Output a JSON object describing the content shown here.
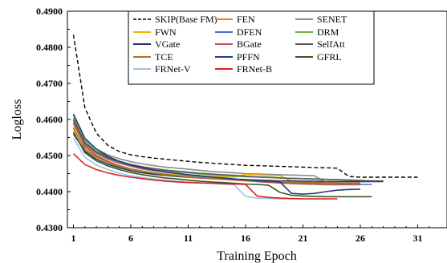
{
  "chart_data": {
    "type": "line",
    "ylabel": "Logloss",
    "xlabel": "Training Epoch",
    "xlim": [
      0,
      34
    ],
    "ylim": [
      0.43,
      0.49
    ],
    "x_ticks": [
      1,
      6,
      11,
      16,
      21,
      26,
      31
    ],
    "y_ticks": [
      0.43,
      0.44,
      0.45,
      0.46,
      0.47,
      0.48,
      0.49
    ],
    "y_tick_labels": [
      "0.4300",
      "0.4400",
      "0.4500",
      "0.4600",
      "0.4700",
      "0.4800",
      "0.4900"
    ],
    "grid": false,
    "legend_position": "top-center",
    "series": [
      {
        "name": "SKIP(Base FM)",
        "color": "#000000",
        "dash": true,
        "x": [
          1,
          2,
          3,
          4,
          5,
          6,
          7,
          8,
          9,
          10,
          11,
          12,
          13,
          14,
          15,
          16,
          17,
          18,
          19,
          20,
          21,
          22,
          23,
          24,
          25,
          26,
          27,
          28,
          29,
          30,
          31
        ],
        "values": [
          0.4835,
          0.4632,
          0.4562,
          0.4528,
          0.4511,
          0.4502,
          0.4497,
          0.4493,
          0.449,
          0.4487,
          0.4484,
          0.4481,
          0.4479,
          0.4477,
          0.4475,
          0.4473,
          0.4472,
          0.4471,
          0.447,
          0.4469,
          0.4468,
          0.4467,
          0.4466,
          0.4465,
          0.4442,
          0.444,
          0.444,
          0.444,
          0.444,
          0.444,
          0.444
        ]
      },
      {
        "name": "FEN",
        "color": "#ed7d31",
        "x": [
          1,
          2,
          3,
          4,
          5,
          6,
          7,
          8,
          9,
          10,
          11,
          12,
          13,
          14,
          15,
          16,
          17,
          18,
          19,
          20,
          21,
          22,
          23,
          24,
          25,
          26
        ],
        "values": [
          0.4588,
          0.4528,
          0.4505,
          0.4489,
          0.4478,
          0.447,
          0.4462,
          0.4458,
          0.4454,
          0.445,
          0.4447,
          0.4444,
          0.4441,
          0.4438,
          0.4435,
          0.4432,
          0.4429,
          0.4426,
          0.4424,
          0.4422,
          0.4421,
          0.442,
          0.4419,
          0.4419,
          0.4419,
          0.4419
        ]
      },
      {
        "name": "SENET",
        "color": "#8c8c8c",
        "x": [
          1,
          2,
          3,
          4,
          5,
          6,
          7,
          8,
          9,
          10,
          11,
          12,
          13,
          14,
          15,
          16,
          17,
          18,
          19,
          20,
          21,
          22,
          23,
          24,
          25,
          26
        ],
        "values": [
          0.4612,
          0.4545,
          0.4518,
          0.4502,
          0.4491,
          0.4483,
          0.4477,
          0.4472,
          0.4468,
          0.4465,
          0.4462,
          0.4459,
          0.4456,
          0.4454,
          0.4452,
          0.445,
          0.4449,
          0.4448,
          0.4447,
          0.4446,
          0.4445,
          0.4444,
          0.4425,
          0.4424,
          0.4423,
          0.4423
        ]
      },
      {
        "name": "FWN",
        "color": "#f2b300",
        "x": [
          1,
          2,
          3,
          4,
          5,
          6,
          7,
          8,
          9,
          10,
          11,
          12,
          13,
          14,
          15,
          16,
          17,
          18,
          19,
          20,
          21,
          22,
          23,
          24,
          25,
          26
        ],
        "values": [
          0.458,
          0.4516,
          0.4495,
          0.4481,
          0.447,
          0.4462,
          0.4456,
          0.4452,
          0.4449,
          0.4447,
          0.4445,
          0.4443,
          0.4442,
          0.4441,
          0.444,
          0.4448,
          0.4447,
          0.4445,
          0.4444,
          0.4429,
          0.4427,
          0.4425,
          0.4423,
          0.4422,
          0.4421,
          0.442
        ]
      },
      {
        "name": "DFEN",
        "color": "#4472c4",
        "x": [
          1,
          2,
          3,
          4,
          5,
          6,
          7,
          8,
          9,
          10,
          11,
          12,
          13,
          14,
          15,
          16,
          17,
          18,
          19,
          20,
          21,
          22,
          23,
          24,
          25,
          26,
          27
        ],
        "values": [
          0.4598,
          0.4532,
          0.4508,
          0.4492,
          0.4481,
          0.4472,
          0.4465,
          0.4459,
          0.4454,
          0.445,
          0.4446,
          0.4443,
          0.444,
          0.4437,
          0.4434,
          0.4431,
          0.4428,
          0.4426,
          0.4424,
          0.4423,
          0.4422,
          0.4421,
          0.442,
          0.442,
          0.442,
          0.442,
          0.442
        ]
      },
      {
        "name": "DRM",
        "color": "#70ad47",
        "x": [
          1,
          2,
          3,
          4,
          5,
          6,
          7,
          8,
          9,
          10,
          11,
          12,
          13,
          14,
          15,
          16,
          17,
          18,
          19,
          20,
          21,
          22,
          23,
          24,
          25,
          26
        ],
        "values": [
          0.4605,
          0.454,
          0.4512,
          0.4496,
          0.4484,
          0.4475,
          0.4468,
          0.4463,
          0.4459,
          0.4455,
          0.4452,
          0.4449,
          0.4447,
          0.4445,
          0.4443,
          0.4441,
          0.444,
          0.4439,
          0.4438,
          0.4437,
          0.4436,
          0.4435,
          0.4434,
          0.4433,
          0.4432,
          0.4431
        ]
      },
      {
        "name": "VGate",
        "color": "#203864",
        "x": [
          1,
          2,
          3,
          4,
          5,
          6,
          7,
          8,
          9,
          10,
          11,
          12,
          13,
          14,
          15,
          16,
          17,
          18,
          19,
          20,
          21,
          22,
          23,
          24,
          25,
          26,
          27,
          28
        ],
        "values": [
          0.456,
          0.4512,
          0.449,
          0.4476,
          0.4466,
          0.4458,
          0.4452,
          0.4448,
          0.4445,
          0.4442,
          0.444,
          0.4438,
          0.4436,
          0.4435,
          0.4434,
          0.4433,
          0.4432,
          0.4431,
          0.443,
          0.443,
          0.4429,
          0.4429,
          0.4428,
          0.4428,
          0.4428,
          0.4428,
          0.4428,
          0.4428
        ]
      },
      {
        "name": "BGate",
        "color": "#c0504d",
        "x": [
          1,
          2,
          3,
          4,
          5,
          6,
          7,
          8,
          9,
          10,
          11,
          12,
          13,
          14,
          15,
          16,
          17,
          18,
          19,
          20,
          21,
          22,
          23,
          24,
          25,
          26
        ],
        "values": [
          0.4592,
          0.4525,
          0.45,
          0.4484,
          0.4472,
          0.4463,
          0.4457,
          0.4452,
          0.4448,
          0.4444,
          0.4441,
          0.4438,
          0.4436,
          0.4434,
          0.4432,
          0.443,
          0.4428,
          0.4426,
          0.4425,
          0.4424,
          0.4423,
          0.4422,
          0.4421,
          0.442,
          0.442,
          0.442
        ]
      },
      {
        "name": "SelfAtt",
        "color": "#595959",
        "x": [
          1,
          2,
          3,
          4,
          5,
          6,
          7,
          8,
          9,
          10,
          11,
          12,
          13,
          14,
          15,
          16,
          17,
          18,
          19,
          20,
          21,
          22,
          23,
          24,
          25,
          26,
          27,
          28
        ],
        "values": [
          0.46,
          0.4535,
          0.451,
          0.4494,
          0.4483,
          0.4475,
          0.4469,
          0.4464,
          0.446,
          0.4457,
          0.4454,
          0.4451,
          0.4449,
          0.4447,
          0.4445,
          0.4443,
          0.4441,
          0.444,
          0.4438,
          0.4437,
          0.4436,
          0.4435,
          0.4434,
          0.4433,
          0.4432,
          0.4431,
          0.443,
          0.443
        ]
      },
      {
        "name": "TCE",
        "color": "#a6761d",
        "x": [
          1,
          2,
          3,
          4,
          5,
          6,
          7,
          8,
          9,
          10,
          11,
          12,
          13,
          14,
          15,
          16,
          17,
          18,
          19,
          20,
          21,
          22,
          23,
          24,
          25,
          26
        ],
        "values": [
          0.4575,
          0.4518,
          0.4496,
          0.4481,
          0.447,
          0.4462,
          0.4456,
          0.4451,
          0.4447,
          0.4444,
          0.4441,
          0.4439,
          0.4437,
          0.4435,
          0.4433,
          0.4431,
          0.443,
          0.4429,
          0.4428,
          0.4427,
          0.4426,
          0.4425,
          0.4425,
          0.4424,
          0.4424,
          0.4424
        ]
      },
      {
        "name": "PFFN",
        "color": "#1f3e7a",
        "x": [
          1,
          2,
          3,
          4,
          5,
          6,
          7,
          8,
          9,
          10,
          11,
          12,
          13,
          14,
          15,
          16,
          17,
          18,
          19,
          20,
          21,
          22,
          23,
          24,
          25,
          26
        ],
        "values": [
          0.4615,
          0.4548,
          0.4518,
          0.4498,
          0.4484,
          0.4474,
          0.4466,
          0.446,
          0.4455,
          0.4451,
          0.4447,
          0.4444,
          0.4441,
          0.4438,
          0.4435,
          0.4433,
          0.4431,
          0.4429,
          0.4427,
          0.4395,
          0.4393,
          0.4395,
          0.44,
          0.4404,
          0.4406,
          0.4407
        ]
      },
      {
        "name": "GFRL",
        "color": "#375623",
        "x": [
          1,
          2,
          3,
          4,
          5,
          6,
          7,
          8,
          9,
          10,
          11,
          12,
          13,
          14,
          15,
          16,
          17,
          18,
          19,
          20,
          21,
          22,
          23,
          24,
          25,
          26,
          27
        ],
        "values": [
          0.4565,
          0.4508,
          0.4485,
          0.4471,
          0.4461,
          0.4453,
          0.4447,
          0.4442,
          0.4438,
          0.4435,
          0.4432,
          0.4429,
          0.4427,
          0.4425,
          0.4423,
          0.4421,
          0.442,
          0.4418,
          0.4398,
          0.439,
          0.4388,
          0.4387,
          0.4386,
          0.4386,
          0.4386,
          0.4386,
          0.4386
        ]
      },
      {
        "name": "FRNet-V",
        "color": "#9dc3e6",
        "x": [
          1,
          2,
          3,
          4,
          5,
          6,
          7,
          8,
          9,
          10,
          11,
          12,
          13,
          14,
          15,
          16,
          17,
          18,
          19,
          20,
          21,
          22,
          23
        ],
        "values": [
          0.4548,
          0.4495,
          0.4474,
          0.4461,
          0.4451,
          0.4444,
          0.4439,
          0.4435,
          0.4432,
          0.4429,
          0.4427,
          0.4425,
          0.4423,
          0.4421,
          0.4419,
          0.4387,
          0.4382,
          0.4381,
          0.438,
          0.438,
          0.438,
          0.438,
          0.438
        ]
      },
      {
        "name": "FRNet-B",
        "color": "#e02020",
        "x": [
          1,
          2,
          3,
          4,
          5,
          6,
          7,
          8,
          9,
          10,
          11,
          12,
          13,
          14,
          15,
          16,
          17,
          18,
          19,
          20,
          21,
          22,
          23,
          24
        ],
        "values": [
          0.4505,
          0.4475,
          0.4461,
          0.4452,
          0.4445,
          0.444,
          0.4436,
          0.4432,
          0.4429,
          0.4427,
          0.4425,
          0.4424,
          0.4423,
          0.4422,
          0.4421,
          0.442,
          0.4388,
          0.4384,
          0.4382,
          0.4381,
          0.438,
          0.438,
          0.438,
          0.438
        ]
      }
    ]
  }
}
